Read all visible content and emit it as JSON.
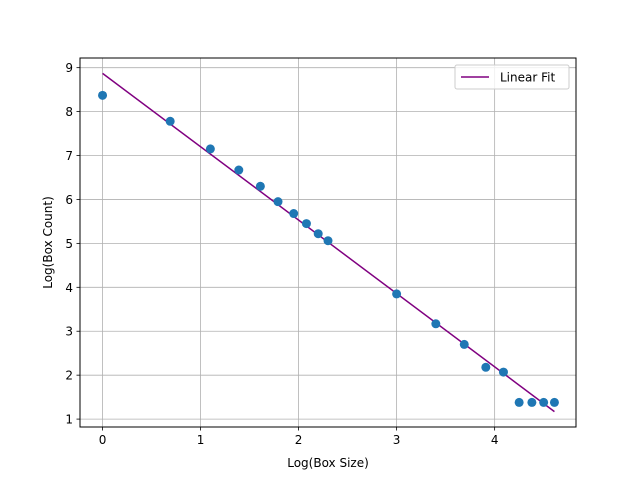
{
  "chart_data": {
    "type": "scatter",
    "title": "",
    "xlabel": "Log(Box Size)",
    "ylabel": "Log(Box Count)",
    "xlim": [
      -0.23,
      4.83
    ],
    "ylim": [
      0.82,
      9.22
    ],
    "grid": true,
    "legend_position": "top-right",
    "x_ticks": [
      0,
      1,
      2,
      3,
      4
    ],
    "y_ticks": [
      1,
      2,
      3,
      4,
      5,
      6,
      7,
      8,
      9
    ],
    "x_tick_labels": [
      "0",
      "1",
      "2",
      "3",
      "4"
    ],
    "y_tick_labels": [
      "1",
      "2",
      "3",
      "4",
      "5",
      "6",
      "7",
      "8",
      "9"
    ],
    "series": [
      {
        "kind": "scatter",
        "color": "#1f77b4",
        "points": [
          {
            "x": 0.0,
            "y": 8.37
          },
          {
            "x": 0.69,
            "y": 7.78
          },
          {
            "x": 1.1,
            "y": 7.15
          },
          {
            "x": 1.39,
            "y": 6.67
          },
          {
            "x": 1.61,
            "y": 6.3
          },
          {
            "x": 1.79,
            "y": 5.95
          },
          {
            "x": 1.95,
            "y": 5.68
          },
          {
            "x": 2.08,
            "y": 5.45
          },
          {
            "x": 2.2,
            "y": 5.22
          },
          {
            "x": 2.3,
            "y": 5.06
          },
          {
            "x": 3.0,
            "y": 3.85
          },
          {
            "x": 3.4,
            "y": 3.17
          },
          {
            "x": 3.69,
            "y": 2.7
          },
          {
            "x": 3.91,
            "y": 2.18
          },
          {
            "x": 4.09,
            "y": 2.07
          },
          {
            "x": 4.25,
            "y": 1.38
          },
          {
            "x": 4.38,
            "y": 1.38
          },
          {
            "x": 4.5,
            "y": 1.38
          },
          {
            "x": 4.61,
            "y": 1.38
          }
        ]
      },
      {
        "kind": "line",
        "name": "Linear Fit",
        "color": "#800080",
        "x": [
          0.0,
          4.61
        ],
        "y": [
          8.87,
          1.17
        ]
      }
    ]
  }
}
